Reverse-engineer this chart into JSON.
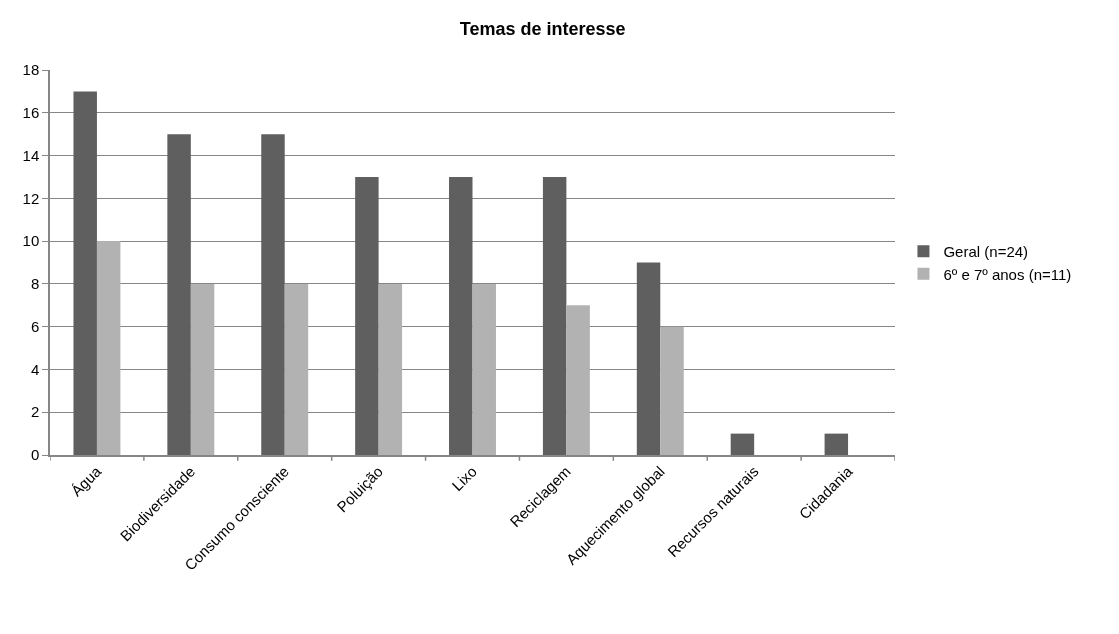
{
  "chart_data": {
    "type": "bar",
    "title": "Temas de interesse",
    "categories": [
      "Água",
      "Biodiversidade",
      "Consumo consciente",
      "Poluição",
      "Lixo",
      "Reciclagem",
      "Aquecimento global",
      "Recursos naturais",
      "Cidadania"
    ],
    "series": [
      {
        "name": "Geral (n=24)",
        "color": "#5f5f5f",
        "values": [
          17,
          15,
          15,
          13,
          13,
          13,
          9,
          1,
          1
        ]
      },
      {
        "name": "6º e 7º anos (n=11)",
        "color": "#b2b2b2",
        "values": [
          10,
          8,
          8,
          8,
          8,
          7,
          6,
          null,
          null
        ]
      }
    ],
    "ylim": [
      0,
      18
    ],
    "yticks": [
      0,
      2,
      4,
      6,
      8,
      10,
      12,
      14,
      16,
      18
    ],
    "grid": "y",
    "legend": "right"
  }
}
